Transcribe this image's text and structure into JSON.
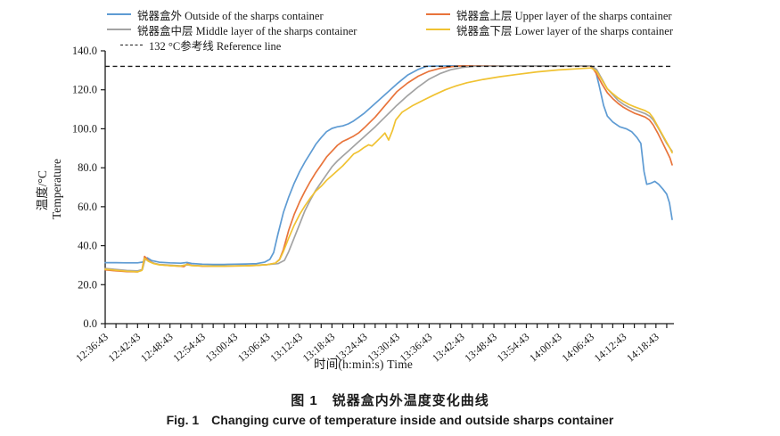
{
  "figure": {
    "caption_zh": "图 1　锐器盒内外温度变化曲线",
    "caption_en": "Fig. 1　Changing curve of temperature inside and outside sharps container"
  },
  "chart_data": {
    "type": "line",
    "title": "",
    "xlabel": "时间(h:min:s)  Time",
    "ylabel_lines": [
      "温度/°C",
      "Temperature"
    ],
    "ylim": [
      0,
      140
    ],
    "y_tick_labels": [
      "0.0",
      "20.0",
      "40.0",
      "60.0",
      "80.0",
      "100.0",
      "120.0",
      "140.0"
    ],
    "grid": false,
    "legend_position": "top",
    "x_axis": {
      "unit": "h:min:s",
      "start": "12:36:43",
      "total_min": 105,
      "minor_tick_every_min": 2,
      "label_every_min": 6,
      "tick_labels": [
        "12:36:43",
        "12:42:43",
        "12:48:43",
        "12:54:43",
        "13:00:43",
        "13:06:43",
        "13:12:43",
        "13:18:43",
        "13:24:43",
        "13:30:43",
        "13:36:43",
        "13:42:43",
        "13:48:43",
        "13:54:43",
        "14:00:43",
        "14:06:43",
        "14:12:43",
        "14:18:43"
      ]
    },
    "reference_line": {
      "value": 132,
      "label": "132 °C参考线 Reference line",
      "style": "dashed",
      "color": "#1a1a1a"
    },
    "series": [
      {
        "id": "outside",
        "label": "锐器盒外 Outside of the sharps container",
        "color": "#5e9bd3",
        "points": [
          [
            0,
            31.3
          ],
          [
            2,
            31.3
          ],
          [
            4,
            31.2
          ],
          [
            6,
            31.2
          ],
          [
            7,
            31.6
          ],
          [
            7.8,
            33.8
          ],
          [
            8.6,
            32.4
          ],
          [
            10,
            31.5
          ],
          [
            12,
            31.2
          ],
          [
            14,
            31
          ],
          [
            15.2,
            31.4
          ],
          [
            16,
            30.9
          ],
          [
            18,
            30.5
          ],
          [
            20,
            30.4
          ],
          [
            22,
            30.4
          ],
          [
            24,
            30.5
          ],
          [
            26,
            30.6
          ],
          [
            28,
            30.8
          ],
          [
            29.5,
            31.5
          ],
          [
            30.5,
            33
          ],
          [
            31.2,
            36.5
          ],
          [
            32,
            46
          ],
          [
            33,
            57
          ],
          [
            34,
            65
          ],
          [
            35,
            72
          ],
          [
            36,
            78
          ],
          [
            37,
            83
          ],
          [
            38,
            87.5
          ],
          [
            39,
            92
          ],
          [
            40,
            95.5
          ],
          [
            41,
            98.5
          ],
          [
            42,
            100.2
          ],
          [
            43,
            101
          ],
          [
            44,
            101.5
          ],
          [
            45,
            102.5
          ],
          [
            46,
            104
          ],
          [
            47,
            106
          ],
          [
            48,
            108
          ],
          [
            50,
            113
          ],
          [
            52,
            118
          ],
          [
            54,
            123
          ],
          [
            56,
            127.5
          ],
          [
            58,
            130.5
          ],
          [
            59.5,
            132.1
          ],
          [
            64,
            132.3
          ],
          [
            70,
            132.3
          ],
          [
            76,
            132.3
          ],
          [
            82,
            132.3
          ],
          [
            86,
            132.3
          ],
          [
            90,
            132.3
          ],
          [
            90.8,
            130
          ],
          [
            91.5,
            122
          ],
          [
            92.3,
            112
          ],
          [
            93,
            106.5
          ],
          [
            94,
            103.5
          ],
          [
            95.3,
            101
          ],
          [
            96.5,
            100
          ],
          [
            97.5,
            98.5
          ],
          [
            98.5,
            95.5
          ],
          [
            99.2,
            92.5
          ],
          [
            99.8,
            78
          ],
          [
            100.3,
            71.5
          ],
          [
            101,
            72
          ],
          [
            101.8,
            73
          ],
          [
            102.5,
            71.5
          ],
          [
            103.3,
            69
          ],
          [
            104,
            66.5
          ],
          [
            104.5,
            62
          ],
          [
            105,
            53.5
          ]
        ]
      },
      {
        "id": "upper",
        "label": "锐器盒上层 Upper layer of the sharps container",
        "color": "#e8743b",
        "points": [
          [
            0,
            27.6
          ],
          [
            2,
            27.1
          ],
          [
            4,
            26.7
          ],
          [
            6,
            26.6
          ],
          [
            6.8,
            27.5
          ],
          [
            7.3,
            34.5
          ],
          [
            8,
            32.5
          ],
          [
            9,
            31
          ],
          [
            10,
            30.3
          ],
          [
            12,
            29.8
          ],
          [
            14,
            29.4
          ],
          [
            14.6,
            29.3
          ],
          [
            15.2,
            30.6
          ],
          [
            16,
            29.9
          ],
          [
            18,
            29.5
          ],
          [
            20,
            29.5
          ],
          [
            22,
            29.5
          ],
          [
            24,
            29.6
          ],
          [
            26,
            29.7
          ],
          [
            28,
            29.9
          ],
          [
            30,
            30.3
          ],
          [
            31.5,
            31
          ],
          [
            32.3,
            33
          ],
          [
            33,
            38
          ],
          [
            34,
            48
          ],
          [
            35,
            56
          ],
          [
            36,
            62.5
          ],
          [
            37,
            68
          ],
          [
            38,
            73
          ],
          [
            39,
            77.5
          ],
          [
            40,
            81.5
          ],
          [
            41,
            85.5
          ],
          [
            42,
            88.5
          ],
          [
            43,
            91.5
          ],
          [
            44,
            93.5
          ],
          [
            45,
            94.8
          ],
          [
            46,
            96.2
          ],
          [
            47,
            98
          ],
          [
            48,
            100.5
          ],
          [
            50,
            106
          ],
          [
            52,
            112.5
          ],
          [
            54,
            119
          ],
          [
            56,
            123.5
          ],
          [
            58,
            127
          ],
          [
            60,
            129.5
          ],
          [
            62,
            131
          ],
          [
            64,
            131.8
          ],
          [
            65.5,
            132.2
          ],
          [
            70,
            132.3
          ],
          [
            76,
            132.3
          ],
          [
            82,
            132.3
          ],
          [
            86,
            132.3
          ],
          [
            90,
            132.2
          ],
          [
            90.8,
            129
          ],
          [
            92,
            123
          ],
          [
            93,
            118.5
          ],
          [
            94,
            115.5
          ],
          [
            95,
            113
          ],
          [
            96,
            111
          ],
          [
            97,
            109.5
          ],
          [
            98,
            108
          ],
          [
            99,
            107
          ],
          [
            100,
            106
          ],
          [
            100.8,
            104.5
          ],
          [
            101.5,
            102
          ],
          [
            102.3,
            98
          ],
          [
            103.2,
            93
          ],
          [
            104,
            88.5
          ],
          [
            104.6,
            85
          ],
          [
            105,
            81.5
          ]
        ]
      },
      {
        "id": "middle",
        "label": "锐器盒中层 Middle layer of the sharps container",
        "color": "#a3a3a3",
        "points": [
          [
            0,
            28.3
          ],
          [
            2,
            27.8
          ],
          [
            4,
            27.3
          ],
          [
            6,
            27.1
          ],
          [
            6.9,
            27.8
          ],
          [
            7.4,
            33.2
          ],
          [
            8.2,
            32
          ],
          [
            9,
            31
          ],
          [
            10,
            30.4
          ],
          [
            12,
            30
          ],
          [
            14,
            29.7
          ],
          [
            15.2,
            30.2
          ],
          [
            16,
            29.9
          ],
          [
            18,
            29.7
          ],
          [
            20,
            29.6
          ],
          [
            22,
            29.6
          ],
          [
            24,
            29.7
          ],
          [
            26,
            29.8
          ],
          [
            28,
            30
          ],
          [
            30,
            30.3
          ],
          [
            32,
            30.8
          ],
          [
            33.2,
            32.5
          ],
          [
            34,
            37
          ],
          [
            35,
            44
          ],
          [
            36,
            51
          ],
          [
            37,
            58
          ],
          [
            38,
            63.5
          ],
          [
            39,
            68.5
          ],
          [
            40,
            72.5
          ],
          [
            41,
            76.5
          ],
          [
            42,
            80.5
          ],
          [
            43,
            83.5
          ],
          [
            44,
            86
          ],
          [
            45,
            88.5
          ],
          [
            46,
            91
          ],
          [
            47,
            93.5
          ],
          [
            48,
            96
          ],
          [
            50,
            101
          ],
          [
            52,
            106.5
          ],
          [
            54,
            112
          ],
          [
            56,
            117
          ],
          [
            58,
            121.5
          ],
          [
            60,
            125.5
          ],
          [
            62,
            128.3
          ],
          [
            64,
            130.3
          ],
          [
            66,
            131.4
          ],
          [
            68.3,
            132.1
          ],
          [
            74,
            132.3
          ],
          [
            80,
            132.3
          ],
          [
            86,
            132.3
          ],
          [
            90,
            132.3
          ],
          [
            91,
            130.5
          ],
          [
            92,
            125.5
          ],
          [
            93,
            120.5
          ],
          [
            94,
            117.5
          ],
          [
            95,
            114.5
          ],
          [
            96,
            112.5
          ],
          [
            97,
            111
          ],
          [
            98,
            109.8
          ],
          [
            99,
            108.8
          ],
          [
            100,
            107.8
          ],
          [
            100.8,
            106.5
          ],
          [
            101.5,
            104.5
          ],
          [
            102.3,
            101
          ],
          [
            103.2,
            96.5
          ],
          [
            104,
            92.5
          ],
          [
            104.6,
            90
          ],
          [
            105,
            88.5
          ]
        ]
      },
      {
        "id": "lower",
        "label": "锐器盒下层 Lower layer of the sharps container",
        "color": "#f0c232",
        "points": [
          [
            0,
            27.9
          ],
          [
            2,
            27.4
          ],
          [
            4,
            26.9
          ],
          [
            6,
            26.6
          ],
          [
            6.8,
            27.3
          ],
          [
            7.3,
            33.6
          ],
          [
            8,
            32
          ],
          [
            9,
            30.8
          ],
          [
            10,
            30.2
          ],
          [
            12,
            29.8
          ],
          [
            14,
            29.5
          ],
          [
            15.2,
            30.4
          ],
          [
            16,
            29.8
          ],
          [
            18,
            29.6
          ],
          [
            20,
            29.5
          ],
          [
            22,
            29.5
          ],
          [
            24,
            29.6
          ],
          [
            26,
            29.7
          ],
          [
            28,
            29.9
          ],
          [
            30,
            30.3
          ],
          [
            31.5,
            31
          ],
          [
            32.3,
            32.8
          ],
          [
            33,
            37
          ],
          [
            34,
            44
          ],
          [
            35,
            50.5
          ],
          [
            36,
            56
          ],
          [
            37,
            60.5
          ],
          [
            38,
            64.5
          ],
          [
            39,
            68
          ],
          [
            40,
            70.5
          ],
          [
            41,
            73.5
          ],
          [
            42,
            76
          ],
          [
            43,
            78.5
          ],
          [
            44,
            81
          ],
          [
            45,
            84
          ],
          [
            46,
            87
          ],
          [
            47,
            88.5
          ],
          [
            48,
            90.5
          ],
          [
            48.8,
            91.8
          ],
          [
            49.4,
            91.2
          ],
          [
            50,
            92.8
          ],
          [
            51,
            95.5
          ],
          [
            51.8,
            97.8
          ],
          [
            52.5,
            94.2
          ],
          [
            53.2,
            99
          ],
          [
            53.8,
            104.5
          ],
          [
            55,
            108.5
          ],
          [
            57,
            112
          ],
          [
            59,
            114.8
          ],
          [
            61,
            117.5
          ],
          [
            63,
            120
          ],
          [
            65,
            122
          ],
          [
            67,
            123.6
          ],
          [
            70,
            125.3
          ],
          [
            73,
            126.7
          ],
          [
            76,
            127.8
          ],
          [
            80,
            129.2
          ],
          [
            84,
            130.2
          ],
          [
            87,
            130.7
          ],
          [
            90,
            131.2
          ],
          [
            91,
            129.5
          ],
          [
            92,
            125
          ],
          [
            93,
            120.5
          ],
          [
            94,
            118
          ],
          [
            95,
            115.8
          ],
          [
            96,
            114
          ],
          [
            97,
            112.5
          ],
          [
            98,
            111.3
          ],
          [
            99,
            110.3
          ],
          [
            100,
            109.3
          ],
          [
            100.8,
            108
          ],
          [
            101.5,
            105.5
          ],
          [
            102.3,
            101.5
          ],
          [
            103.2,
            97
          ],
          [
            104,
            93
          ],
          [
            104.6,
            90
          ],
          [
            105,
            87.7
          ]
        ]
      }
    ]
  }
}
